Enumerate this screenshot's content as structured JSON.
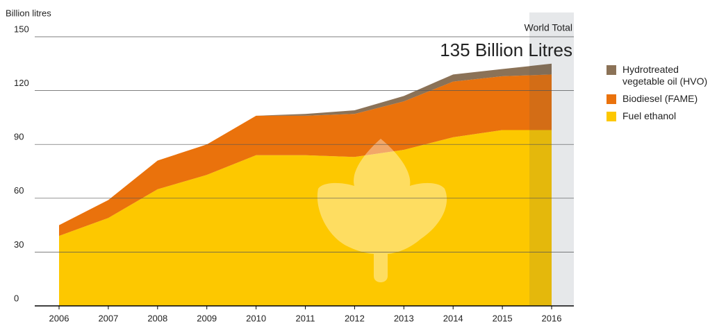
{
  "chart_data": {
    "type": "stacked-area",
    "y_label": "Billion litres",
    "annotation_title": "World Total",
    "annotation_value": "135 Billion Litres",
    "categories": [
      "2006",
      "2007",
      "2008",
      "2009",
      "2010",
      "2011",
      "2012",
      "2013",
      "2014",
      "2015",
      "2016"
    ],
    "series": [
      {
        "name": "Fuel ethanol",
        "color": "#fdc800",
        "values": [
          39,
          49,
          65,
          73,
          84,
          84,
          83,
          87,
          94,
          98,
          98
        ]
      },
      {
        "name": "Biodiesel (FAME)",
        "color": "#ea720c",
        "values": [
          6,
          10,
          16,
          17,
          22,
          22,
          24,
          27,
          31,
          30,
          31
        ]
      },
      {
        "name": "Hydrotreated vegetable oil (HVO)",
        "color": "#8b7257",
        "values": [
          0,
          0,
          0,
          0,
          0,
          1,
          2,
          3,
          4,
          4,
          6
        ]
      }
    ],
    "ylim": [
      0,
      150
    ],
    "yticks": [
      0,
      30,
      60,
      90,
      120,
      150
    ],
    "grid": true
  }
}
